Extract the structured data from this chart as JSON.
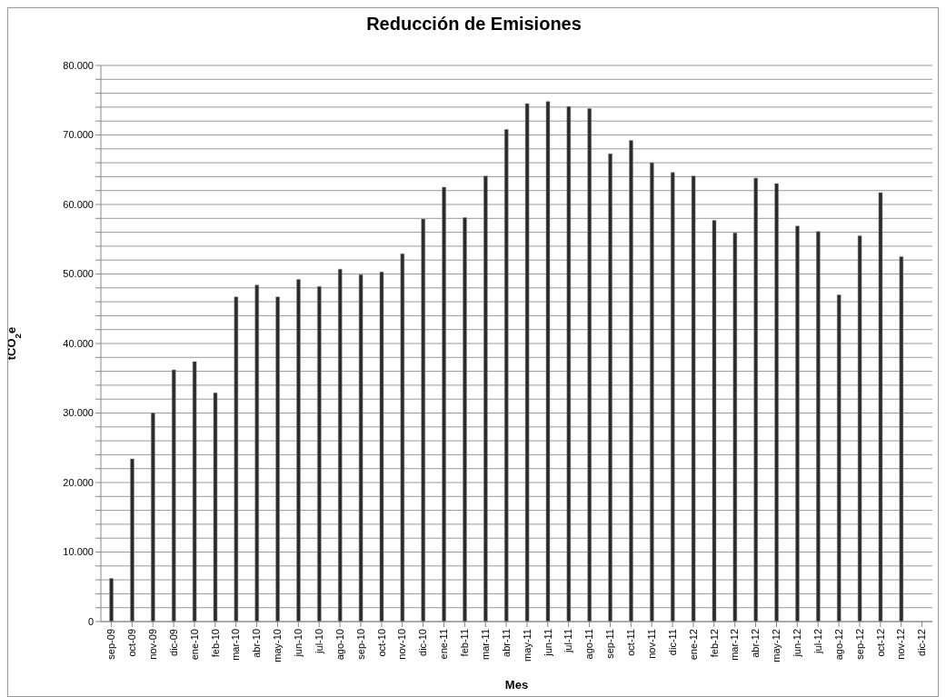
{
  "chart_data": {
    "type": "bar",
    "title": "Reducción de Emisiones",
    "xlabel": "Mes",
    "ylabel": "tCO$_{2}$e",
    "categories": [
      "sep-09",
      "oct-09",
      "nov-09",
      "dic-09",
      "ene-10",
      "feb-10",
      "mar-10",
      "abr-10",
      "may-10",
      "jun-10",
      "jul-10",
      "ago-10",
      "sep-10",
      "oct-10",
      "nov-10",
      "dic-10",
      "ene-11",
      "feb-11",
      "mar-11",
      "abr-11",
      "may-11",
      "jun-11",
      "jul-11",
      "ago-11",
      "sep-11",
      "oct-11",
      "nov-11",
      "dic-11",
      "ene-12",
      "feb-12",
      "mar-12",
      "abr-12",
      "may-12",
      "jun-12",
      "jul-12",
      "ago-12",
      "sep-12",
      "oct-12",
      "nov-12",
      "dic-12"
    ],
    "values": [
      6200,
      23400,
      30000,
      36200,
      37400,
      32900,
      46700,
      48400,
      46700,
      49200,
      48200,
      50700,
      49900,
      50300,
      52900,
      57900,
      62500,
      58100,
      64100,
      70800,
      74500,
      74800,
      74100,
      73800,
      67300,
      69200,
      66000,
      64600,
      64100,
      57700,
      55900,
      63800,
      63000,
      56900,
      56100,
      47000,
      55500,
      61700,
      52500,
      null
    ],
    "color": "#2b2b2b",
    "ylim": [
      0,
      80000
    ],
    "yticks": [
      0,
      {
        "value": 2000,
        "label": null
      },
      {
        "value": 4000,
        "label": null
      },
      {
        "value": 6000,
        "label": null
      },
      {
        "value": 8000,
        "label": null
      },
      {
        "value": 10000,
        "label": "10.000"
      },
      {
        "value": 12000,
        "label": null
      },
      {
        "value": 14000,
        "label": null
      },
      {
        "value": 16000,
        "label": null
      },
      {
        "value": 18000,
        "label": null
      },
      {
        "value": 20000,
        "label": "20.000"
      },
      {
        "value": 22000,
        "label": null
      },
      {
        "value": 24000,
        "label": null
      },
      {
        "value": 26000,
        "label": null
      },
      {
        "value": 28000,
        "label": null
      },
      {
        "value": 30000,
        "label": "30.000"
      },
      {
        "value": 32000,
        "label": null
      },
      {
        "value": 34000,
        "label": null
      },
      {
        "value": 36000,
        "label": null
      },
      {
        "value": 38000,
        "label": null
      },
      {
        "value": 40000,
        "label": "40.000"
      },
      {
        "value": 42000,
        "label": null
      },
      {
        "value": 44000,
        "label": null
      },
      {
        "value": 46000,
        "label": null
      },
      {
        "value": 48000,
        "label": null
      },
      {
        "value": 50000,
        "label": "50.000"
      },
      {
        "value": 52000,
        "label": null
      },
      {
        "value": 54000,
        "label": null
      },
      {
        "value": 56000,
        "label": null
      },
      {
        "value": 58000,
        "label": null
      },
      {
        "value": 60000,
        "label": "60.000"
      },
      {
        "value": 62000,
        "label": null
      },
      {
        "value": 64000,
        "label": null
      },
      {
        "value": 66000,
        "label": null
      },
      {
        "value": 68000,
        "label": null
      },
      {
        "value": 70000,
        "label": "70.000"
      },
      {
        "value": 72000,
        "label": null
      },
      {
        "value": 74000,
        "label": null
      },
      {
        "value": 76000,
        "label": null
      },
      {
        "value": 78000,
        "label": null
      },
      {
        "value": 80000,
        "label": "80.000"
      }
    ],
    "grid": "y",
    "legend": false
  }
}
